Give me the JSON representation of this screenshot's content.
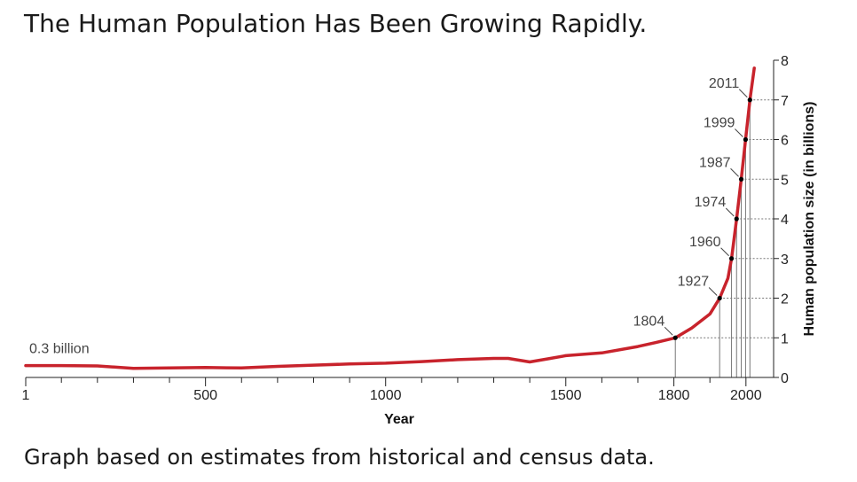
{
  "title": "The Human Population Has Been Growing Rapidly.",
  "footnote": "Graph based on estimates from historical and census data.",
  "colors": {
    "curve": "#c8232c",
    "axis": "#222222",
    "guide": "#777777"
  },
  "chart_data": {
    "type": "line",
    "xlabel": "Year",
    "ylabel": "Human population size (in billions)",
    "xlim": [
      1,
      2030
    ],
    "ylim": [
      0,
      8
    ],
    "x_major_ticks": [
      1,
      500,
      1000,
      1500,
      1800,
      2000
    ],
    "x_minor_ticks": [
      100,
      200,
      300,
      400,
      600,
      700,
      800,
      900,
      1100,
      1200,
      1300,
      1400,
      1600,
      1700,
      1900
    ],
    "y_ticks": [
      0,
      1,
      2,
      3,
      4,
      5,
      6,
      7,
      8
    ],
    "start_label": "0.3 billion",
    "series": [
      {
        "x": [
          1,
          100,
          200,
          300,
          400,
          500,
          600,
          700,
          800,
          900,
          1000,
          1100,
          1200,
          1300,
          1340,
          1400,
          1450,
          1500,
          1600,
          1700,
          1750,
          1804,
          1850,
          1900,
          1927,
          1950,
          1960,
          1974,
          1987,
          1999,
          2011,
          2023
        ],
        "y": [
          0.3,
          0.3,
          0.29,
          0.23,
          0.24,
          0.25,
          0.24,
          0.28,
          0.31,
          0.34,
          0.36,
          0.4,
          0.45,
          0.48,
          0.48,
          0.39,
          0.47,
          0.55,
          0.62,
          0.78,
          0.88,
          1.0,
          1.25,
          1.6,
          2.0,
          2.5,
          3.0,
          4.0,
          5.0,
          6.0,
          7.0,
          7.8
        ]
      }
    ],
    "milestones": [
      {
        "year": 1804,
        "value": 1,
        "label": "1804"
      },
      {
        "year": 1927,
        "value": 2,
        "label": "1927"
      },
      {
        "year": 1960,
        "value": 3,
        "label": "1960"
      },
      {
        "year": 1974,
        "value": 4,
        "label": "1974"
      },
      {
        "year": 1987,
        "value": 5,
        "label": "1987"
      },
      {
        "year": 1999,
        "value": 6,
        "label": "1999"
      },
      {
        "year": 2011,
        "value": 7,
        "label": "2011"
      }
    ]
  }
}
